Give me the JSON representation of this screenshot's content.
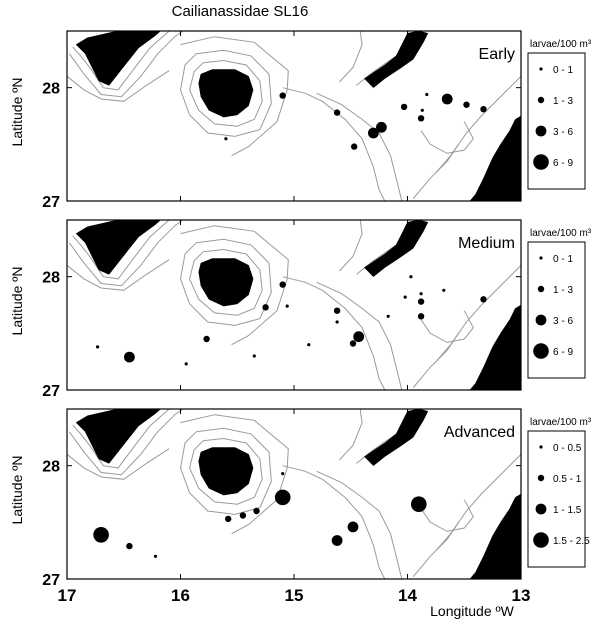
{
  "title": "Cailianassidae SL16",
  "x_axis_label": "Longitude ºW",
  "y_axis_label": "Latitude ºN",
  "x_ticks": [
    "17",
    "16",
    "15",
    "14",
    "13"
  ],
  "y_ticks": [
    "28",
    "27"
  ],
  "lon_range": [
    -17,
    -13
  ],
  "lat_range": [
    27,
    28.5
  ],
  "colors": {
    "land": "#000000",
    "bathymetry": "#9a9a9a",
    "station": "#000000"
  },
  "panels": [
    {
      "stage": "Early",
      "legend": {
        "title": "larvae/100 m³",
        "classes": [
          {
            "label": "0 - 1",
            "size_class": 1
          },
          {
            "label": "1 - 3",
            "size_class": 2
          },
          {
            "label": "3 - 6",
            "size_class": 3
          },
          {
            "label": "6 - 9",
            "size_class": 4
          }
        ]
      },
      "stations": [
        {
          "lon": -15.6,
          "lat": 27.55,
          "size_class": 1
        },
        {
          "lon": -15.1,
          "lat": 27.93,
          "size_class": 2
        },
        {
          "lon": -14.62,
          "lat": 27.78,
          "size_class": 2
        },
        {
          "lon": -14.47,
          "lat": 27.48,
          "size_class": 2
        },
        {
          "lon": -14.3,
          "lat": 27.6,
          "size_class": 3
        },
        {
          "lon": -14.23,
          "lat": 27.65,
          "size_class": 3
        },
        {
          "lon": -14.03,
          "lat": 27.83,
          "size_class": 2
        },
        {
          "lon": -13.88,
          "lat": 27.73,
          "size_class": 2
        },
        {
          "lon": -13.87,
          "lat": 27.8,
          "size_class": 1
        },
        {
          "lon": -13.83,
          "lat": 27.94,
          "size_class": 1
        },
        {
          "lon": -13.65,
          "lat": 27.9,
          "size_class": 3
        },
        {
          "lon": -13.48,
          "lat": 27.85,
          "size_class": 2
        },
        {
          "lon": -13.33,
          "lat": 27.81,
          "size_class": 2
        }
      ]
    },
    {
      "stage": "Medium",
      "legend": {
        "title": "larvae/100 m³",
        "classes": [
          {
            "label": "0 - 1",
            "size_class": 1
          },
          {
            "label": "1 - 3",
            "size_class": 2
          },
          {
            "label": "3 - 6",
            "size_class": 3
          },
          {
            "label": "6 - 9",
            "size_class": 4
          }
        ]
      },
      "stations": [
        {
          "lon": -16.73,
          "lat": 27.38,
          "size_class": 1
        },
        {
          "lon": -16.45,
          "lat": 27.29,
          "size_class": 3
        },
        {
          "lon": -15.95,
          "lat": 27.23,
          "size_class": 1
        },
        {
          "lon": -15.77,
          "lat": 27.45,
          "size_class": 2
        },
        {
          "lon": -15.35,
          "lat": 27.3,
          "size_class": 1
        },
        {
          "lon": -15.25,
          "lat": 27.73,
          "size_class": 2
        },
        {
          "lon": -15.1,
          "lat": 27.93,
          "size_class": 2
        },
        {
          "lon": -15.06,
          "lat": 27.74,
          "size_class": 1
        },
        {
          "lon": -14.87,
          "lat": 27.4,
          "size_class": 1
        },
        {
          "lon": -14.62,
          "lat": 27.7,
          "size_class": 2
        },
        {
          "lon": -14.62,
          "lat": 27.6,
          "size_class": 1
        },
        {
          "lon": -14.48,
          "lat": 27.41,
          "size_class": 2
        },
        {
          "lon": -14.43,
          "lat": 27.47,
          "size_class": 3
        },
        {
          "lon": -14.17,
          "lat": 27.65,
          "size_class": 1
        },
        {
          "lon": -14.02,
          "lat": 27.82,
          "size_class": 1
        },
        {
          "lon": -13.97,
          "lat": 28.0,
          "size_class": 1
        },
        {
          "lon": -13.88,
          "lat": 27.85,
          "size_class": 1
        },
        {
          "lon": -13.88,
          "lat": 27.78,
          "size_class": 2
        },
        {
          "lon": -13.88,
          "lat": 27.65,
          "size_class": 2
        },
        {
          "lon": -13.68,
          "lat": 27.88,
          "size_class": 1
        },
        {
          "lon": -13.33,
          "lat": 27.8,
          "size_class": 2
        }
      ]
    },
    {
      "stage": "Advanced",
      "legend": {
        "title": "larvae/100 m³",
        "classes": [
          {
            "label": "0 - 0.5",
            "size_class": 1
          },
          {
            "label": "0.5 - 1",
            "size_class": 2
          },
          {
            "label": "1 - 1.5",
            "size_class": 3
          },
          {
            "label": "1.5 - 2.5",
            "size_class": 4
          }
        ]
      },
      "stations": [
        {
          "lon": -16.7,
          "lat": 27.39,
          "size_class": 4
        },
        {
          "lon": -16.45,
          "lat": 27.29,
          "size_class": 2
        },
        {
          "lon": -16.22,
          "lat": 27.2,
          "size_class": 1
        },
        {
          "lon": -15.58,
          "lat": 27.53,
          "size_class": 2
        },
        {
          "lon": -15.45,
          "lat": 27.56,
          "size_class": 2
        },
        {
          "lon": -15.33,
          "lat": 27.6,
          "size_class": 2
        },
        {
          "lon": -15.1,
          "lat": 27.93,
          "size_class": 1
        },
        {
          "lon": -15.1,
          "lat": 27.72,
          "size_class": 4
        },
        {
          "lon": -14.62,
          "lat": 27.34,
          "size_class": 3
        },
        {
          "lon": -14.48,
          "lat": 27.46,
          "size_class": 3
        },
        {
          "lon": -13.9,
          "lat": 27.66,
          "size_class": 4
        }
      ]
    }
  ]
}
